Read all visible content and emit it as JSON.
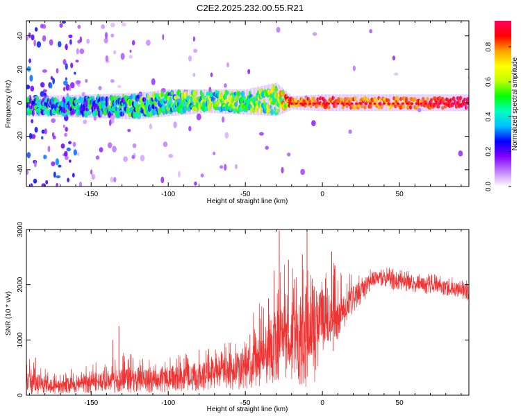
{
  "title": "C2E2.2025.232.00.55.R21",
  "chart_data": [
    {
      "type": "heatmap",
      "xlabel": "Height of straight line (km)",
      "ylabel": "Frequency (Hz)",
      "xlim": [
        -192,
        95
      ],
      "ylim": [
        -50,
        49
      ],
      "xticks": [
        -150,
        -100,
        -50,
        0,
        50
      ],
      "yticks": [
        -40,
        -20,
        0,
        20,
        40
      ],
      "colorbar": {
        "label": "Normalized spectral amplitude",
        "range": [
          0,
          0.95
        ],
        "ticks": [
          0.0,
          0.2,
          0.4,
          0.6,
          0.8
        ],
        "colors": [
          "#ffffff",
          "#c080ff",
          "#8000ff",
          "#0000ff",
          "#00c0ff",
          "#00ffc0",
          "#00ff00",
          "#c0ff00",
          "#ffff00",
          "#ffa000",
          "#ff0000",
          "#ff0060"
        ]
      },
      "band_profile": [
        {
          "x": -192,
          "f_low": -6,
          "f_high": 2,
          "amplitude": 0.3
        },
        {
          "x": -150,
          "f_low": -7,
          "f_high": 3,
          "amplitude": 0.3
        },
        {
          "x": -120,
          "f_low": -8,
          "f_high": 4,
          "amplitude": 0.35
        },
        {
          "x": -100,
          "f_low": -6,
          "f_high": 6,
          "amplitude": 0.4
        },
        {
          "x": -75,
          "f_low": -4,
          "f_high": 6,
          "amplitude": 0.45
        },
        {
          "x": -50,
          "f_low": -5,
          "f_high": 6,
          "amplitude": 0.45
        },
        {
          "x": -30,
          "f_low": -6,
          "f_high": 10,
          "amplitude": 0.5
        },
        {
          "x": -20,
          "f_low": -2,
          "f_high": 2,
          "amplitude": 0.75
        },
        {
          "x": 0,
          "f_low": -3,
          "f_high": 3,
          "amplitude": 0.8
        },
        {
          "x": 50,
          "f_low": -3,
          "f_high": 3,
          "amplitude": 0.75
        },
        {
          "x": 95,
          "f_low": -3,
          "f_high": 3,
          "amplitude": 0.9
        }
      ]
    },
    {
      "type": "line",
      "xlabel": "Height of straight line (km)",
      "ylabel": "SNR (10 * v/v)",
      "xlim": [
        -192,
        95
      ],
      "ylim": [
        0,
        3000
      ],
      "xticks": [
        -150,
        -100,
        -50,
        0,
        50
      ],
      "yticks": [
        0,
        1000,
        2000,
        3000
      ],
      "series": [
        {
          "color": "#ee3333",
          "envelope": [
            {
              "x": -192,
              "low": 20,
              "mid": 300,
              "high": 700
            },
            {
              "x": -175,
              "low": 20,
              "mid": 180,
              "high": 400
            },
            {
              "x": -160,
              "low": 30,
              "mid": 220,
              "high": 450
            },
            {
              "x": -150,
              "low": 40,
              "mid": 260,
              "high": 600
            },
            {
              "x": -130,
              "low": 40,
              "mid": 320,
              "high": 800
            },
            {
              "x": -110,
              "low": 40,
              "mid": 300,
              "high": 650
            },
            {
              "x": -90,
              "low": 60,
              "mid": 360,
              "high": 750
            },
            {
              "x": -70,
              "low": 80,
              "mid": 430,
              "high": 850
            },
            {
              "x": -55,
              "low": 100,
              "mid": 520,
              "high": 1100
            },
            {
              "x": -40,
              "low": 150,
              "mid": 750,
              "high": 1700
            },
            {
              "x": -30,
              "low": 200,
              "mid": 1000,
              "high": 2500
            },
            {
              "x": -20,
              "low": 250,
              "mid": 1150,
              "high": 2300
            },
            {
              "x": -12,
              "low": 150,
              "mid": 1300,
              "high": 2600
            },
            {
              "x": -5,
              "low": 150,
              "mid": 1400,
              "high": 2000
            },
            {
              "x": 0,
              "low": 800,
              "mid": 1500,
              "high": 2200
            },
            {
              "x": 8,
              "low": 900,
              "mid": 1350,
              "high": 2500
            },
            {
              "x": 20,
              "low": 1500,
              "mid": 1800,
              "high": 2150
            },
            {
              "x": 35,
              "low": 1950,
              "mid": 2150,
              "high": 2350
            },
            {
              "x": 60,
              "low": 1850,
              "mid": 2050,
              "high": 2250
            },
            {
              "x": 80,
              "low": 1800,
              "mid": 1980,
              "high": 2150
            },
            {
              "x": 95,
              "low": 1700,
              "mid": 1880,
              "high": 2100
            }
          ],
          "spikes": [
            {
              "x": -186,
              "y": 680
            },
            {
              "x": -163,
              "y": 470
            },
            {
              "x": -136,
              "y": 1000
            },
            {
              "x": -132,
              "y": 1250
            },
            {
              "x": -104,
              "y": 520
            },
            {
              "x": -80,
              "y": 820
            },
            {
              "x": -47,
              "y": 1100
            },
            {
              "x": -35,
              "y": 1750
            },
            {
              "x": -28,
              "y": 2980
            },
            {
              "x": -22,
              "y": 2450
            },
            {
              "x": -18,
              "y": 2100
            },
            {
              "x": -13,
              "y": 2550
            },
            {
              "x": -10,
              "y": 3000
            },
            {
              "x": 6,
              "y": 2600
            },
            {
              "x": 7,
              "y": 800
            }
          ]
        }
      ]
    }
  ]
}
